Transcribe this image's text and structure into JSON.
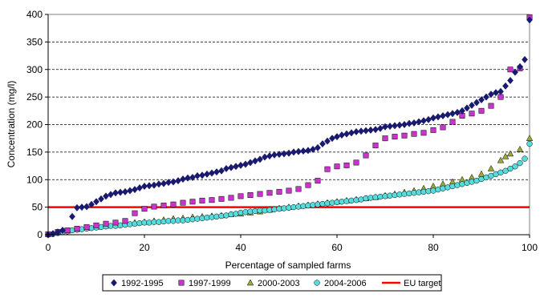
{
  "chart_data": {
    "type": "scatter",
    "xlabel": "Percentage of sampled farms",
    "ylabel": "Concentration (mg/l)",
    "xlim": [
      0,
      100
    ],
    "ylim": [
      0,
      400
    ],
    "xticks": [
      0,
      20,
      40,
      60,
      80,
      100
    ],
    "yticks": [
      0,
      50,
      100,
      150,
      200,
      250,
      300,
      350,
      400
    ],
    "grid": "horizontal dashed",
    "legend_position": "bottom",
    "series": [
      {
        "name": "1992-1995",
        "marker": "diamond",
        "color": "#191970",
        "x": [
          0,
          1,
          2,
          3,
          5,
          6,
          7,
          8,
          9,
          10,
          11,
          12,
          13,
          14,
          15,
          16,
          17,
          18,
          19,
          20,
          21,
          22,
          23,
          24,
          25,
          26,
          27,
          28,
          29,
          30,
          31,
          32,
          33,
          34,
          35,
          36,
          37,
          38,
          39,
          40,
          41,
          42,
          43,
          44,
          45,
          46,
          47,
          48,
          49,
          50,
          51,
          52,
          53,
          54,
          55,
          56,
          57,
          58,
          59,
          60,
          61,
          62,
          63,
          64,
          65,
          66,
          67,
          68,
          69,
          70,
          71,
          72,
          73,
          74,
          75,
          76,
          77,
          78,
          79,
          80,
          81,
          82,
          83,
          84,
          85,
          86,
          87,
          88,
          89,
          90,
          91,
          92,
          93,
          94,
          95,
          96,
          97,
          98,
          99,
          100
        ],
        "y": [
          0,
          2,
          5,
          8,
          33,
          49,
          50,
          51,
          55,
          60,
          65,
          70,
          73,
          76,
          77,
          78,
          80,
          82,
          85,
          88,
          89,
          90,
          92,
          93,
          95,
          96,
          98,
          101,
          103,
          104,
          107,
          108,
          110,
          112,
          114,
          116,
          120,
          122,
          124,
          126,
          128,
          131,
          134,
          137,
          141,
          143,
          145,
          146,
          147,
          148,
          150,
          151,
          152,
          153,
          155,
          158,
          165,
          170,
          175,
          178,
          181,
          183,
          185,
          187,
          188,
          189,
          190,
          191,
          193,
          196,
          197,
          198,
          199,
          200,
          202,
          203,
          205,
          207,
          209,
          212,
          214,
          216,
          218,
          220,
          222,
          225,
          230,
          235,
          240,
          245,
          250,
          255,
          258,
          260,
          270,
          280,
          295,
          305,
          318,
          390
        ]
      },
      {
        "name": "1997-1999",
        "marker": "square",
        "color": "#cc33cc",
        "x": [
          0,
          2,
          4,
          6,
          8,
          10,
          12,
          14,
          16,
          18,
          20,
          22,
          24,
          26,
          28,
          30,
          32,
          34,
          36,
          38,
          40,
          42,
          44,
          46,
          48,
          50,
          52,
          54,
          56,
          58,
          60,
          62,
          64,
          66,
          68,
          70,
          72,
          74,
          76,
          78,
          80,
          82,
          84,
          86,
          88,
          90,
          92,
          94,
          96,
          98,
          100
        ],
        "y": [
          1,
          5,
          8,
          11,
          14,
          17,
          20,
          22,
          25,
          39,
          47,
          51,
          53,
          55,
          58,
          60,
          62,
          63,
          65,
          67,
          70,
          72,
          74,
          76,
          78,
          80,
          83,
          90,
          98,
          119,
          124,
          126,
          131,
          144,
          162,
          175,
          178,
          180,
          183,
          185,
          190,
          195,
          205,
          216,
          220,
          225,
          234,
          250,
          300,
          302,
          395
        ]
      },
      {
        "name": "2000-2003",
        "marker": "triangle",
        "color": "#9aac38",
        "x": [
          0,
          2,
          4,
          6,
          8,
          10,
          12,
          14,
          16,
          18,
          20,
          22,
          24,
          26,
          28,
          30,
          32,
          34,
          36,
          38,
          40,
          42,
          44,
          46,
          48,
          50,
          52,
          54,
          56,
          58,
          60,
          62,
          64,
          66,
          68,
          70,
          72,
          74,
          76,
          78,
          80,
          82,
          84,
          86,
          88,
          90,
          92,
          94,
          95,
          96,
          98,
          100
        ],
        "y": [
          1,
          4,
          7,
          10,
          12,
          14,
          16,
          18,
          20,
          22,
          23,
          25,
          27,
          29,
          30,
          32,
          33,
          34,
          35,
          37,
          38,
          40,
          42,
          45,
          48,
          50,
          52,
          54,
          56,
          58,
          60,
          62,
          64,
          66,
          68,
          71,
          74,
          77,
          80,
          84,
          88,
          92,
          96,
          100,
          104,
          110,
          120,
          135,
          142,
          147,
          155,
          175
        ]
      },
      {
        "name": "2004-2006",
        "marker": "circle",
        "color": "#55dddd",
        "x": [
          0,
          1,
          2,
          3,
          4,
          5,
          6,
          7,
          8,
          9,
          10,
          11,
          12,
          13,
          14,
          15,
          16,
          17,
          18,
          19,
          20,
          21,
          22,
          23,
          24,
          25,
          26,
          27,
          28,
          29,
          30,
          31,
          32,
          33,
          34,
          35,
          36,
          37,
          38,
          39,
          40,
          41,
          42,
          43,
          44,
          45,
          46,
          47,
          48,
          49,
          50,
          51,
          52,
          53,
          54,
          55,
          56,
          57,
          58,
          59,
          60,
          61,
          62,
          63,
          64,
          65,
          66,
          67,
          68,
          69,
          70,
          71,
          72,
          73,
          74,
          75,
          76,
          77,
          78,
          79,
          80,
          81,
          82,
          83,
          84,
          85,
          86,
          87,
          88,
          89,
          90,
          91,
          92,
          93,
          94,
          95,
          96,
          97,
          98,
          99,
          100
        ],
        "y": [
          0,
          1,
          3,
          5,
          6,
          8,
          9,
          10,
          11,
          12,
          13,
          14,
          15,
          16,
          16,
          17,
          18,
          19,
          20,
          21,
          22,
          22,
          23,
          23,
          24,
          25,
          25,
          26,
          26,
          27,
          28,
          29,
          30,
          31,
          32,
          33,
          34,
          35,
          37,
          38,
          40,
          41,
          42,
          43,
          44,
          44,
          45,
          46,
          47,
          48,
          49,
          50,
          51,
          52,
          53,
          54,
          55,
          56,
          57,
          58,
          59,
          60,
          61,
          62,
          63,
          64,
          66,
          67,
          68,
          69,
          70,
          71,
          72,
          73,
          74,
          75,
          76,
          77,
          78,
          79,
          80,
          82,
          84,
          86,
          88,
          90,
          92,
          94,
          96,
          98,
          101,
          104,
          107,
          110,
          113,
          116,
          120,
          124,
          130,
          138,
          165
        ]
      }
    ],
    "reference_line": {
      "name": "EU target",
      "y": 50,
      "color": "#ff0000"
    }
  }
}
